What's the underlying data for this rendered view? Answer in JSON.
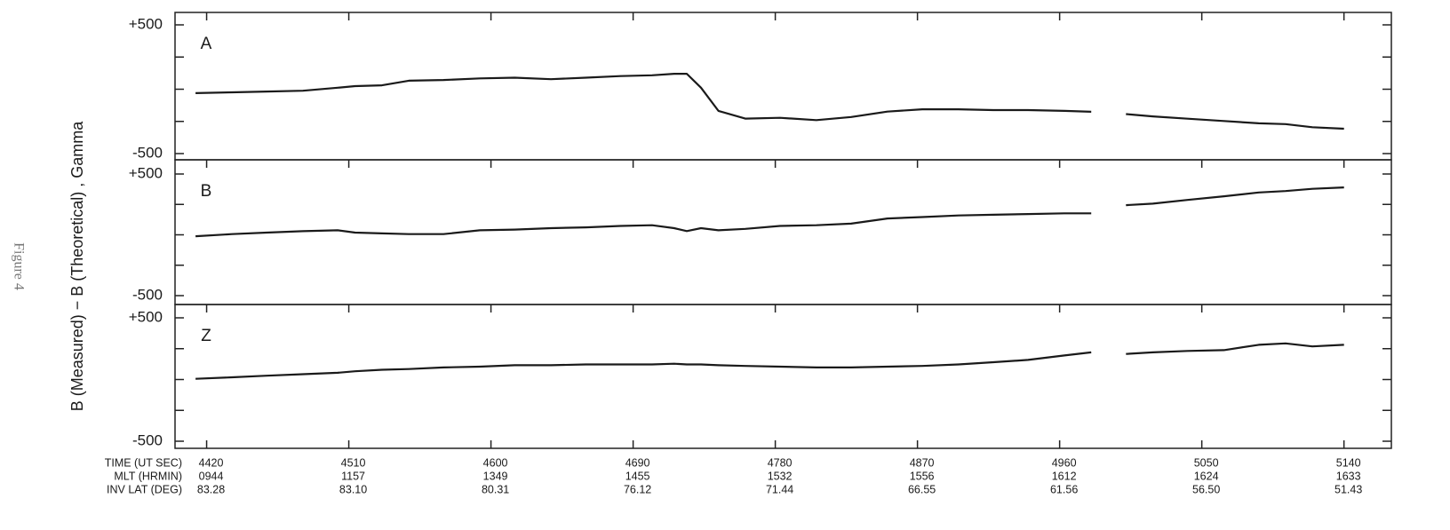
{
  "figure_label": "Figure 4",
  "y_label": "B (Measured) − B (Theoretical) , Gamma",
  "chart_data": [
    {
      "type": "line",
      "title": "A",
      "x": [
        4413,
        4436,
        4458,
        4481,
        4503,
        4514,
        4531,
        4548,
        4570,
        4593,
        4615,
        4638,
        4660,
        4682,
        4702,
        4716,
        4724,
        4733,
        4744,
        4761,
        4783,
        4806,
        4828,
        4851,
        4873,
        4896,
        4918,
        4940,
        4963,
        4980,
        4990,
        5002,
        5019,
        5041,
        5064,
        5086,
        5103,
        5120,
        5140
      ],
      "series": [
        {
          "color": "#1a1a1a",
          "values": [
            -30,
            -24,
            -18,
            -12,
            12,
            24,
            30,
            66,
            72,
            84,
            90,
            78,
            90,
            102,
            108,
            120,
            120,
            12,
            -168,
            -228,
            -222,
            -240,
            -216,
            -174,
            -156,
            -156,
            -162,
            -162,
            -168,
            -175,
            null,
            -193,
            -211,
            -229,
            -247,
            -265,
            -271,
            -295,
            -307
          ]
        }
      ],
      "xlim": [
        4400,
        5170
      ],
      "ylim": [
        -500,
        500
      ],
      "yticks": [
        -500,
        {
          "value": 500,
          "label": "+500"
        }
      ],
      "yminor_ticks": [
        -250,
        0,
        250
      ]
    },
    {
      "type": "line",
      "title": "B",
      "x": [
        4413,
        4436,
        4458,
        4481,
        4503,
        4514,
        4531,
        4548,
        4570,
        4593,
        4615,
        4638,
        4660,
        4682,
        4702,
        4716,
        4724,
        4733,
        4744,
        4761,
        4783,
        4806,
        4828,
        4851,
        4873,
        4896,
        4918,
        4940,
        4963,
        4980,
        4990,
        5002,
        5019,
        5041,
        5064,
        5086,
        5103,
        5120,
        5140
      ],
      "series": [
        {
          "color": "#1a1a1a",
          "values": [
            -12,
            6,
            18,
            30,
            37,
            18,
            12,
            6,
            6,
            37,
            43,
            55,
            61,
            73,
            79,
            55,
            31,
            55,
            37,
            49,
            73,
            79,
            92,
            134,
            146,
            159,
            165,
            171,
            177,
            177,
            null,
            244,
            256,
            287,
            317,
            348,
            360,
            378,
            390
          ]
        }
      ],
      "xlim": [
        4400,
        5170
      ],
      "ylim": [
        -500,
        500
      ],
      "yticks": [
        -500,
        {
          "value": 500,
          "label": "+500"
        }
      ],
      "yminor_ticks": [
        -250,
        0,
        250
      ]
    },
    {
      "type": "line",
      "title": "Z",
      "x": [
        4413,
        4436,
        4458,
        4481,
        4503,
        4514,
        4531,
        4548,
        4570,
        4593,
        4615,
        4638,
        4660,
        4682,
        4702,
        4716,
        4724,
        4733,
        4744,
        4761,
        4783,
        4806,
        4828,
        4851,
        4873,
        4896,
        4918,
        4940,
        4963,
        4980,
        4990,
        5002,
        5019,
        5041,
        5064,
        5086,
        5103,
        5120,
        5140
      ],
      "series": [
        {
          "color": "#1a1a1a",
          "values": [
            6,
            18,
            31,
            43,
            55,
            67,
            79,
            85,
            98,
            104,
            116,
            116,
            122,
            122,
            122,
            128,
            122,
            122,
            116,
            110,
            104,
            98,
            98,
            104,
            110,
            122,
            140,
            159,
            195,
            220,
            null,
            207,
            220,
            232,
            238,
            281,
            293,
            268,
            281
          ]
        }
      ],
      "xlim": [
        4400,
        5170
      ],
      "ylim": [
        -500,
        500
      ],
      "yticks": [
        -500,
        {
          "value": 500,
          "label": "+500"
        }
      ],
      "yminor_ticks": [
        -250,
        0,
        250
      ],
      "xticks": [
        4420,
        4510,
        4600,
        4690,
        4780,
        4870,
        4960,
        5050,
        5140
      ],
      "xrow_labels": [
        "TIME (UT SEC)",
        "MLT (HRMIN)",
        "INV LAT (DEG)"
      ],
      "mlt": [
        "0944",
        "1157",
        "1349",
        "1455",
        "1532",
        "1556",
        "1612",
        "1624",
        "1633"
      ],
      "inv_lat": [
        "83.28",
        "83.10",
        "80.31",
        "76.12",
        "71.44",
        "66.55",
        "61.56",
        "56.50",
        "51.43"
      ]
    }
  ]
}
